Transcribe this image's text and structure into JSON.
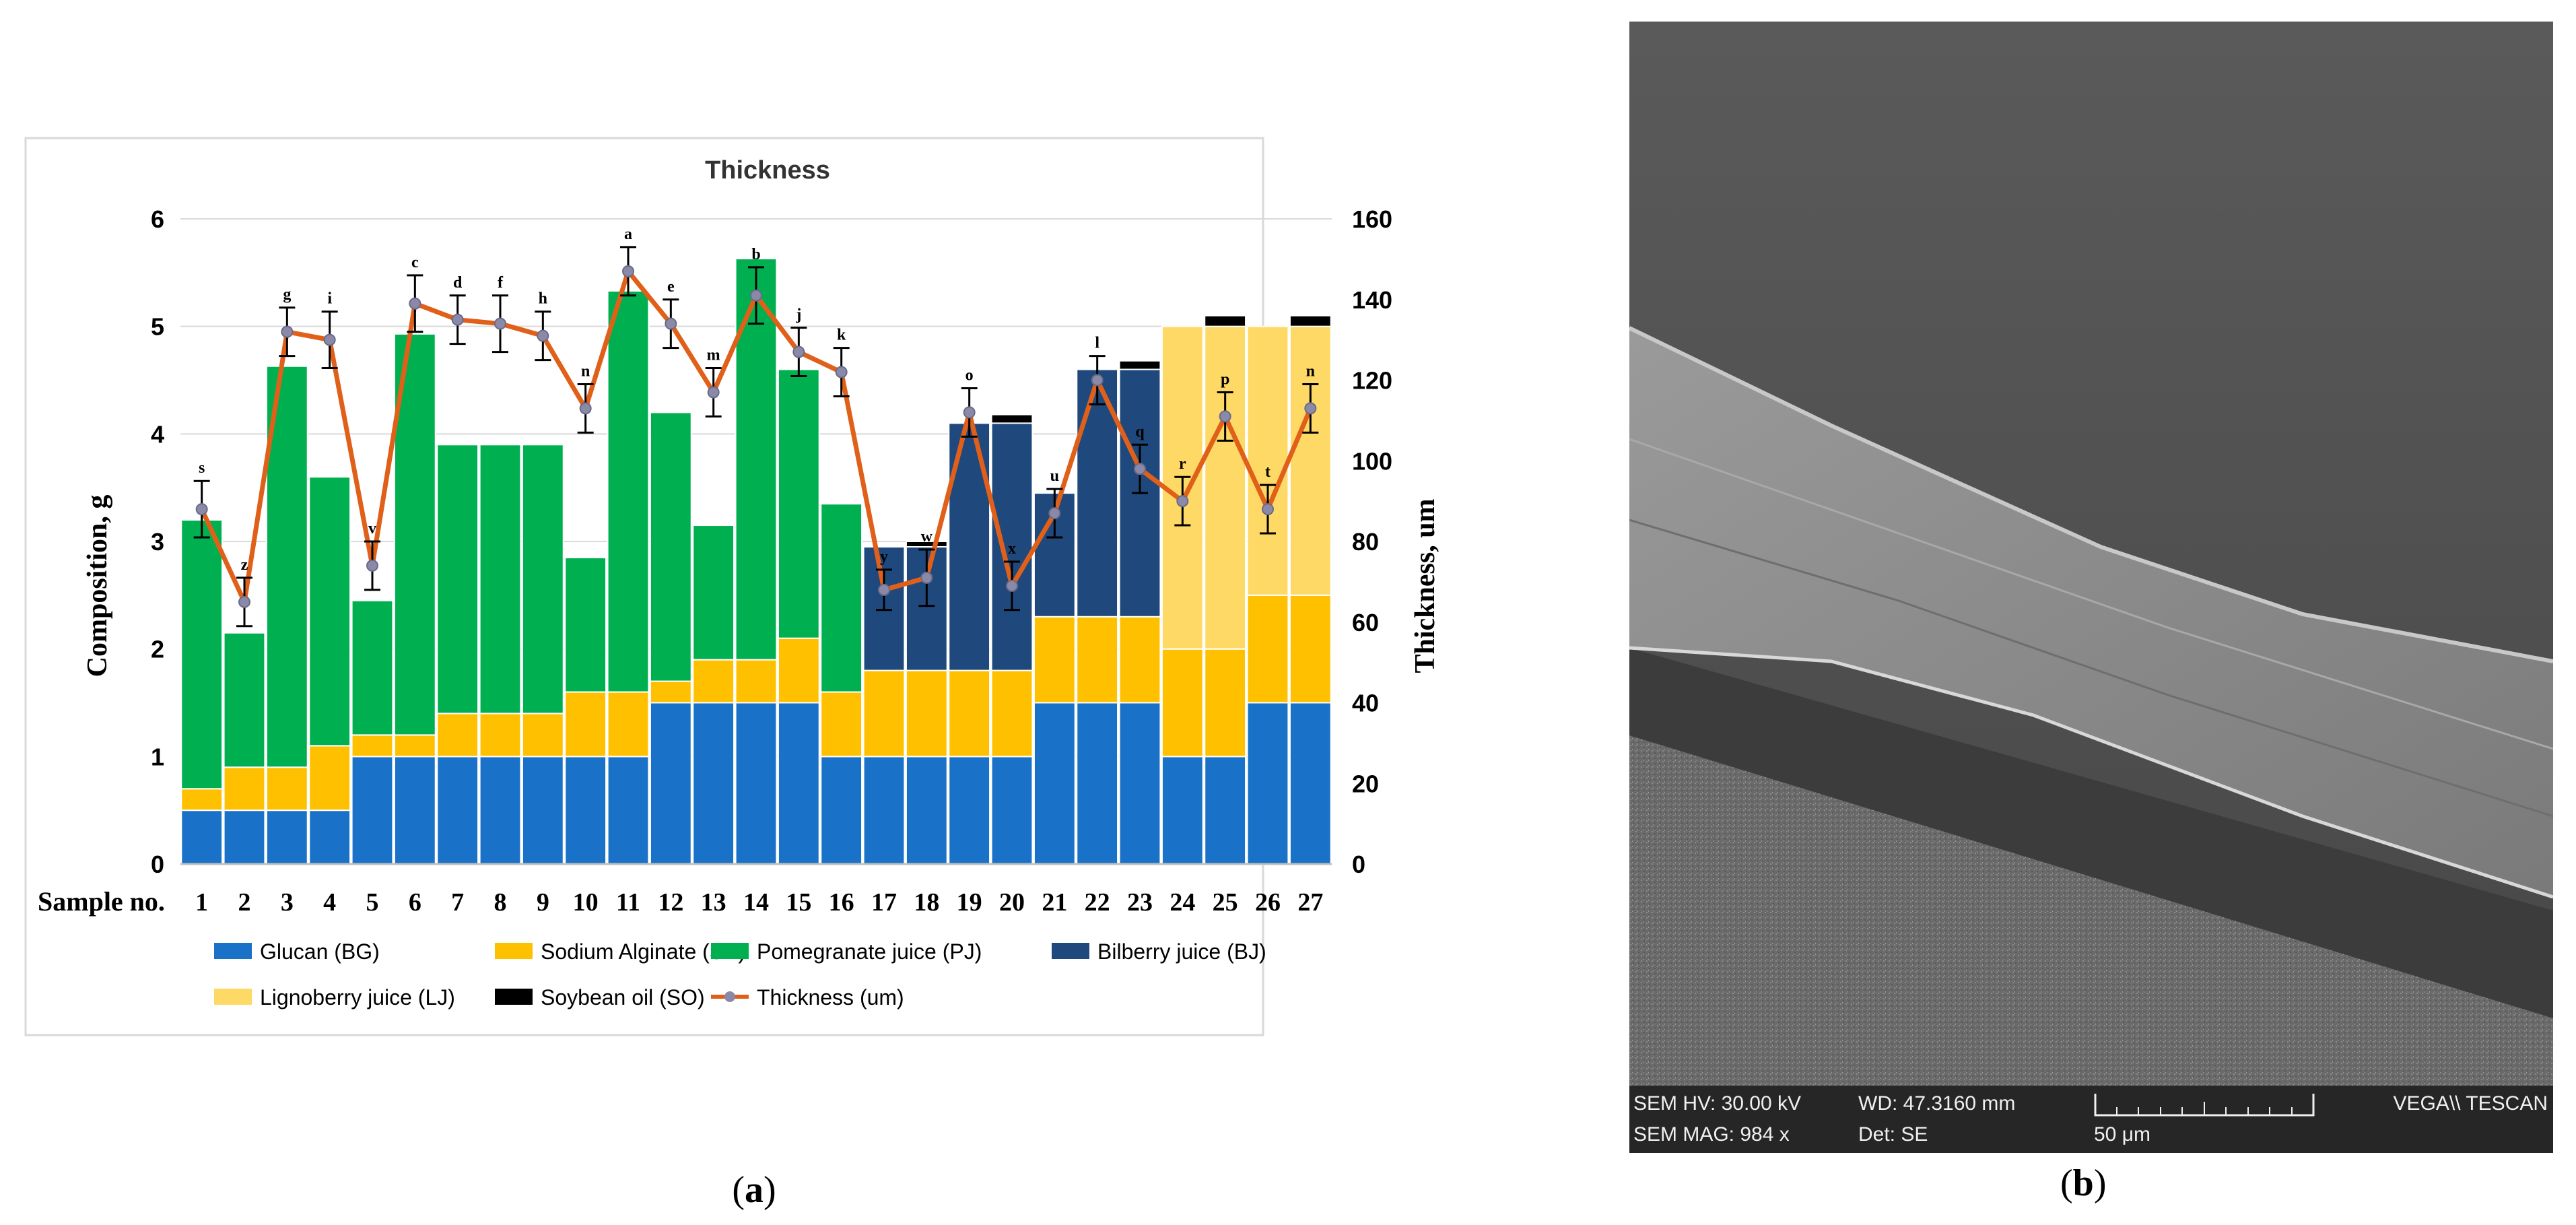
{
  "chart_data": {
    "type": "bar",
    "stacked": true,
    "title": "Thickness",
    "xlabel": "Sample no.",
    "ylabel": "Composition, g",
    "y2label": "Thickness, um",
    "ylim": [
      0,
      6
    ],
    "y2lim": [
      0,
      160
    ],
    "yticks": [
      "0",
      "1",
      "2",
      "3",
      "4",
      "5",
      "6"
    ],
    "y2ticks": [
      "0",
      "20",
      "40",
      "60",
      "80",
      "100",
      "120",
      "140",
      "160"
    ],
    "categories": [
      "1",
      "2",
      "3",
      "4",
      "5",
      "6",
      "7",
      "8",
      "9",
      "10",
      "11",
      "12",
      "13",
      "14",
      "15",
      "16",
      "17",
      "18",
      "19",
      "20",
      "21",
      "22",
      "23",
      "24",
      "25",
      "26",
      "27"
    ],
    "series": [
      {
        "name": "Glucan (BG)",
        "color": "#1a72c8",
        "values": [
          0.5,
          0.5,
          0.5,
          0.5,
          1,
          1,
          1,
          1,
          1,
          1,
          1,
          1.5,
          1.5,
          1.5,
          1.5,
          1,
          1,
          1,
          1,
          1,
          1.5,
          1.5,
          1.5,
          1,
          1,
          1.5,
          1.5
        ]
      },
      {
        "name": "Sodium Alginate (SA)",
        "color": "#ffc000",
        "values": [
          0.2,
          0.4,
          0.4,
          0.6,
          0.2,
          0.2,
          0.4,
          0.4,
          0.4,
          0.6,
          0.6,
          0.2,
          0.4,
          0.4,
          0.6,
          0.6,
          0.8,
          0.8,
          0.8,
          0.8,
          0.8,
          0.8,
          0.8,
          1,
          1,
          1,
          1
        ]
      },
      {
        "name": "Pomegranate juice (PJ)",
        "color": "#00b050",
        "values": [
          2.5,
          1.25,
          3.73,
          2.5,
          1.25,
          3.73,
          2.5,
          2.5,
          2.5,
          1.25,
          3.73,
          2.5,
          1.25,
          3.73,
          2.5,
          1.75,
          0,
          0,
          0,
          0,
          0,
          0,
          0,
          0,
          0,
          0,
          0
        ]
      },
      {
        "name": "Bilberry juice (BJ)",
        "color": "#1f497d",
        "values": [
          0,
          0,
          0,
          0,
          0,
          0,
          0,
          0,
          0,
          0,
          0,
          0,
          0,
          0,
          0,
          0,
          1.15,
          1.15,
          2.3,
          2.3,
          1.15,
          2.3,
          2.3,
          0,
          0,
          0,
          0
        ]
      },
      {
        "name": "Lignoberry juice (LJ)",
        "color": "#ffd966",
        "values": [
          0,
          0,
          0,
          0,
          0,
          0,
          0,
          0,
          0,
          0,
          0,
          0,
          0,
          0,
          0,
          0,
          0,
          0,
          0,
          0,
          0,
          0,
          0,
          3,
          3,
          2.5,
          2.5
        ]
      },
      {
        "name": "Soybean oil (SO)",
        "color": "#000000",
        "values": [
          0,
          0,
          0,
          0,
          0,
          0,
          0,
          0,
          0,
          0,
          0,
          0,
          0,
          0,
          0,
          0,
          0,
          0.05,
          0,
          0.08,
          0,
          0,
          0.08,
          0,
          0.1,
          0,
          0.1
        ]
      }
    ],
    "line": {
      "name": "Thickness (um)",
      "color": "#e0601a",
      "values": [
        88,
        65,
        132,
        130,
        74,
        139,
        135,
        134,
        131,
        113,
        147,
        134,
        117,
        141,
        127,
        122,
        68,
        71,
        112,
        69,
        87,
        120,
        98,
        90,
        111,
        88,
        113
      ],
      "errors": [
        7,
        6,
        6,
        7,
        6,
        7,
        6,
        7,
        6,
        6,
        6,
        6,
        6,
        7,
        6,
        6,
        5,
        7,
        6,
        6,
        6,
        6,
        6,
        6,
        6,
        6,
        6
      ],
      "labels": [
        "s",
        "z",
        "g",
        "i",
        "v",
        "c",
        "d",
        "f",
        "h",
        "n",
        "a",
        "e",
        "m",
        "b",
        "j",
        "k",
        "y",
        "w",
        "o",
        "x",
        "u",
        "l",
        "q",
        "r",
        "p",
        "t",
        "n"
      ]
    },
    "legend_position": "bottom"
  },
  "panel_a_label": "a",
  "panel_b_label": "b",
  "sem": {
    "hv": "SEM HV: 30.00 kV",
    "wd": "WD: 47.3160 mm",
    "mag": "SEM MAG: 984 x",
    "det": "Det: SE",
    "scale": "50 μm",
    "brand": "VEGA\\\\ TESCAN"
  }
}
